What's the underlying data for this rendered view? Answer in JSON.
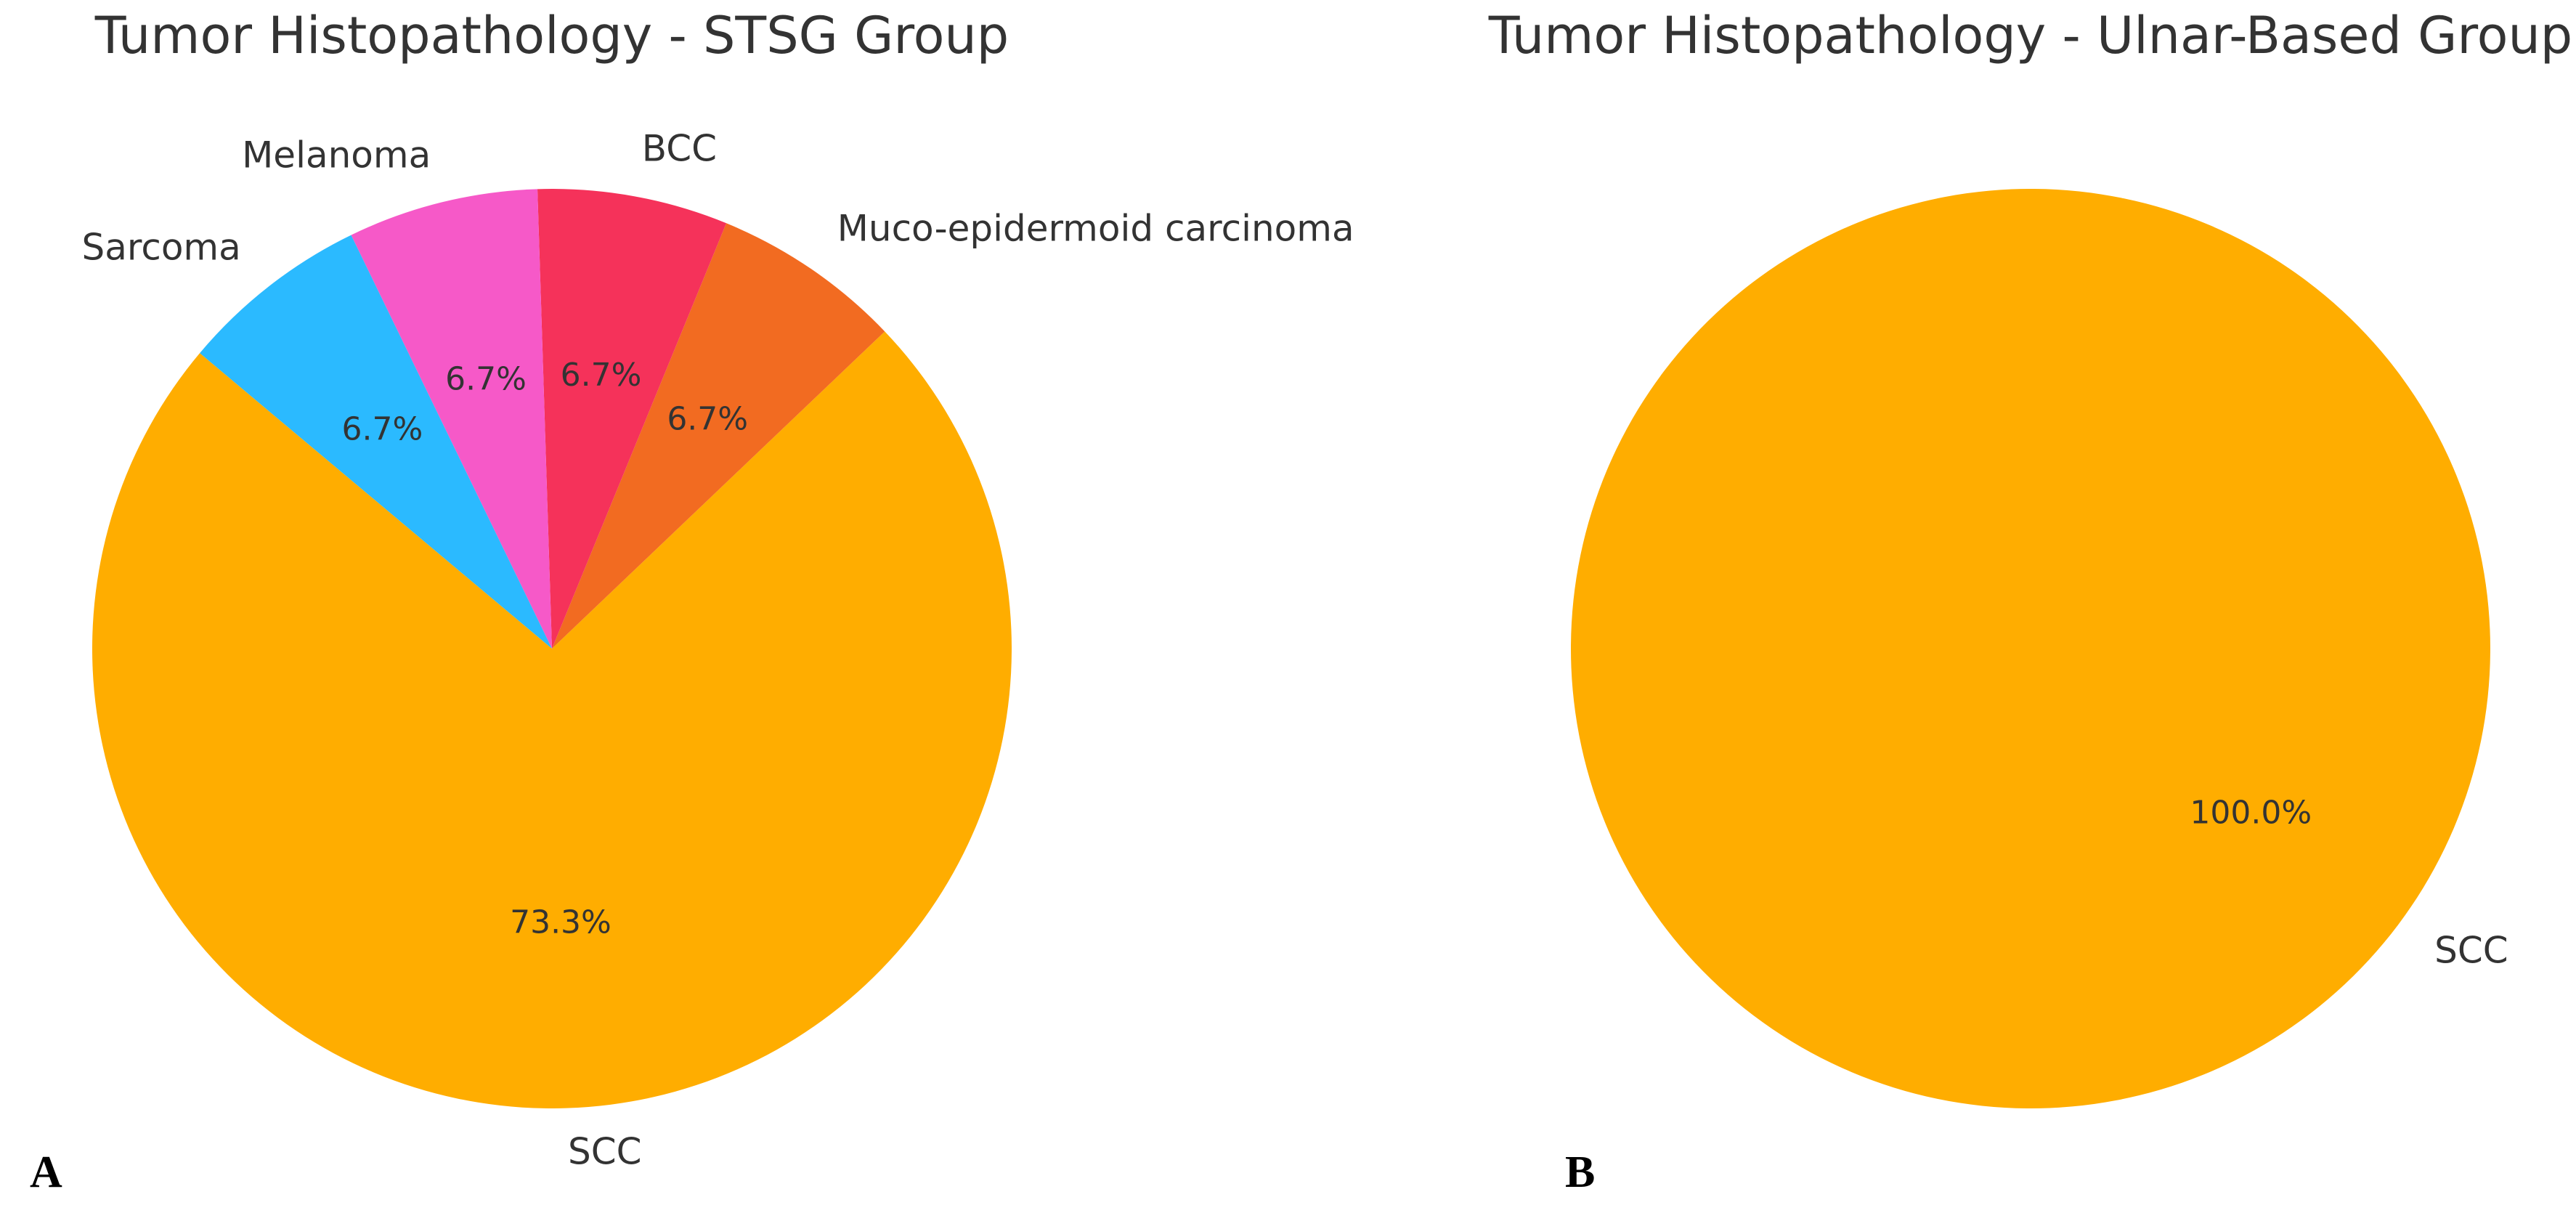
{
  "chart_data": [
    {
      "type": "pie",
      "title": "Tumor Histopathology - STSG Group",
      "panel": "A",
      "categories": [
        "SCC",
        "Muco-epidermoid carcinoma",
        "BCC",
        "Melanoma",
        "Sarcoma"
      ],
      "values": [
        73.3,
        6.7,
        6.7,
        6.7,
        6.7
      ],
      "value_labels": [
        "73.3%",
        "6.7%",
        "6.7%",
        "6.7%",
        "6.7%"
      ],
      "colors": [
        "#ffad00",
        "#f26b21",
        "#f5325a",
        "#f659c8",
        "#2bbaff"
      ]
    },
    {
      "type": "pie",
      "title": "Tumor Histopathology - Ulnar-Based Group",
      "panel": "B",
      "categories": [
        "SCC"
      ],
      "values": [
        100
      ],
      "value_labels": [
        "100.0%"
      ],
      "colors": [
        "#ffad00"
      ]
    }
  ]
}
